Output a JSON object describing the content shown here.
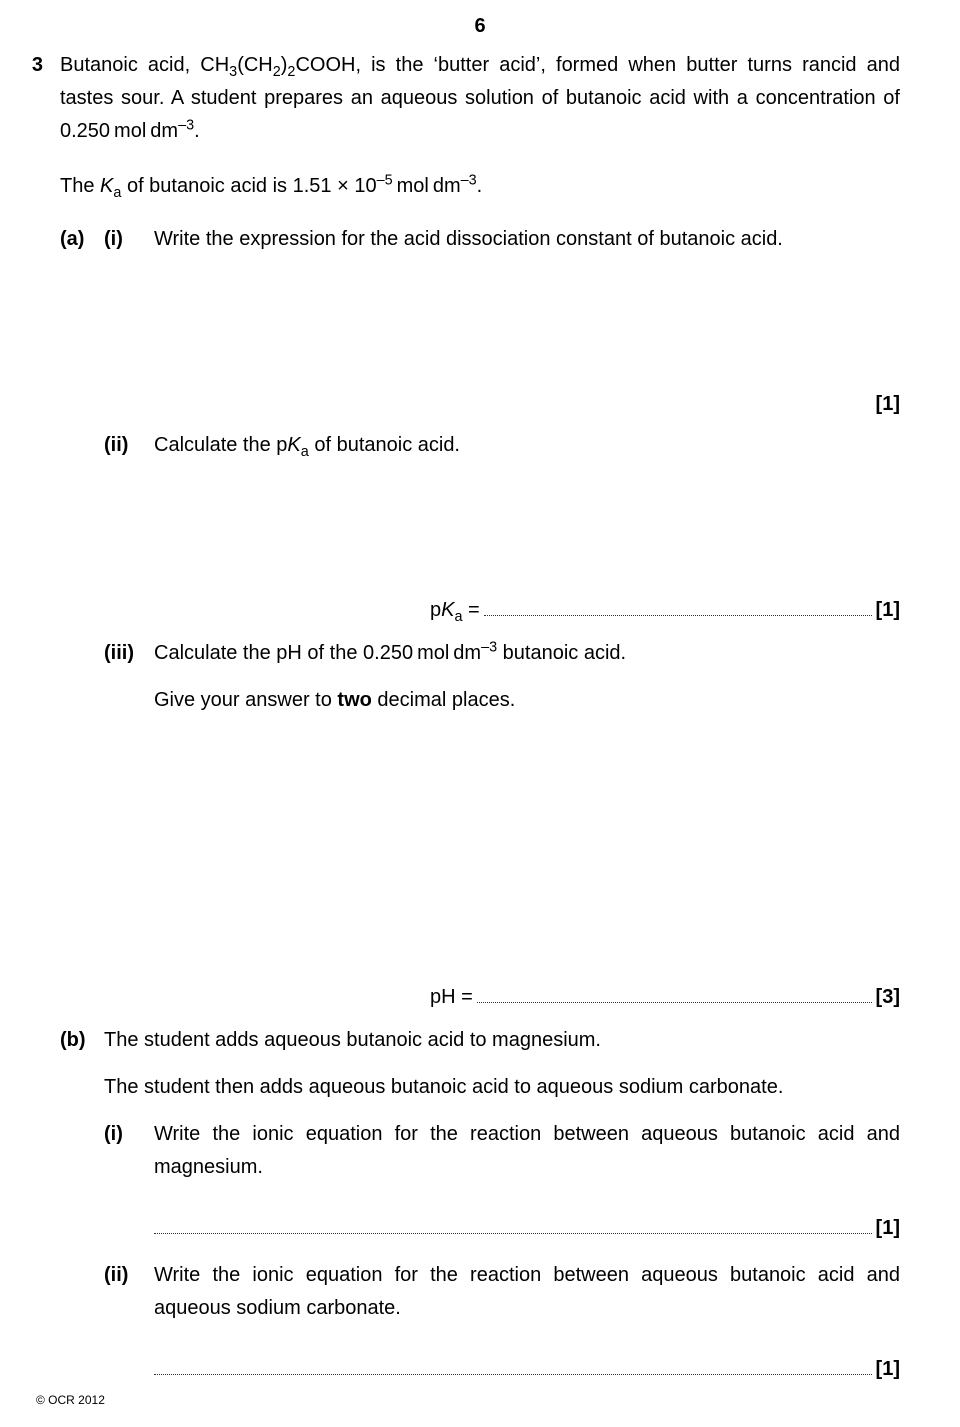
{
  "page_number": "6",
  "question_number": "3",
  "intro_p1_html": "Butanoic acid, CH<sub>3</sub>(CH<sub>2</sub>)<sub>2</sub>COOH, is the ‘butter acid’, formed when butter turns rancid and tastes sour. A student prepares an aqueous solution of butanoic acid with a concentration of 0.250 mol dm<sup>–3</sup>.",
  "intro_p2_html": "The <span class=\"italic\">K</span><sub>a</sub> of butanoic acid is 1.51 × 10<sup>–5</sup> mol dm<sup>–3</sup>.",
  "a": {
    "label": "(a)",
    "i": {
      "label": "(i)",
      "text": "Write the expression for the acid dissociation constant of butanoic acid.",
      "mark": "[1]"
    },
    "ii": {
      "label": "(ii)",
      "text_html": "Calculate the p<span class=\"italic\">K</span><sub>a</sub> of butanoic acid.",
      "answer_label_html": "p<span class=\"italic\">K</span><sub>a</sub> = ",
      "mark": "[1]"
    },
    "iii": {
      "label": "(iii)",
      "text_html": "Calculate the pH of the 0.250 mol dm<sup>–3</sup> butanoic acid.",
      "extra": "Give your answer to <b>two</b> decimal places.",
      "answer_label": "pH = ",
      "mark": "[3]"
    }
  },
  "b": {
    "label": "(b)",
    "intro1": "The student adds aqueous butanoic acid to magnesium.",
    "intro2": "The student then adds aqueous butanoic acid to aqueous sodium carbonate.",
    "i": {
      "label": "(i)",
      "text": "Write the ionic equation for the reaction between aqueous butanoic acid and magnesium.",
      "mark": "[1]"
    },
    "ii": {
      "label": "(ii)",
      "text": "Write the ionic equation for the reaction between aqueous butanoic acid and aqueous sodium carbonate.",
      "mark": "[1]"
    }
  },
  "copyright": "© OCR 2012"
}
